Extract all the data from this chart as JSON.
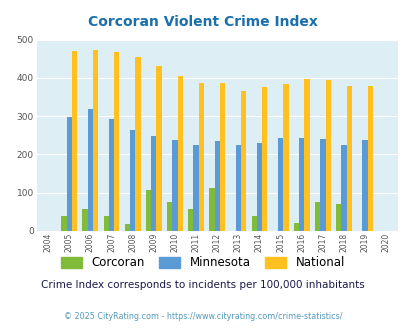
{
  "title": "Corcoran Violent Crime Index",
  "years": [
    "2004",
    "2005",
    "2006",
    "2007",
    "2008",
    "2009",
    "2010",
    "2011",
    "2012",
    "2013",
    "2014",
    "2015",
    "2016",
    "2017",
    "2018",
    "2019",
    "2020"
  ],
  "corcoran": [
    0,
    40,
    57,
    40,
    18,
    108,
    75,
    58,
    112,
    0,
    40,
    0,
    22,
    75,
    70,
    0,
    0
  ],
  "minnesota": [
    0,
    298,
    320,
    292,
    265,
    248,
    238,
    224,
    234,
    224,
    231,
    244,
    244,
    240,
    224,
    237,
    0
  ],
  "national": [
    0,
    469,
    474,
    467,
    455,
    431,
    405,
    387,
    387,
    367,
    377,
    384,
    398,
    394,
    380,
    379,
    0
  ],
  "colors": {
    "corcoran": "#80bb3a",
    "minnesota": "#5b9bd5",
    "national": "#ffc020"
  },
  "bg_color": "#ddeef5",
  "ylim": [
    0,
    500
  ],
  "yticks": [
    0,
    100,
    200,
    300,
    400,
    500
  ],
  "subtitle": "Crime Index corresponds to incidents per 100,000 inhabitants",
  "footer": "© 2025 CityRating.com - https://www.cityrating.com/crime-statistics/",
  "title_color": "#1a6fad",
  "subtitle_color": "#1a1a4a",
  "footer_color": "#5599bb"
}
